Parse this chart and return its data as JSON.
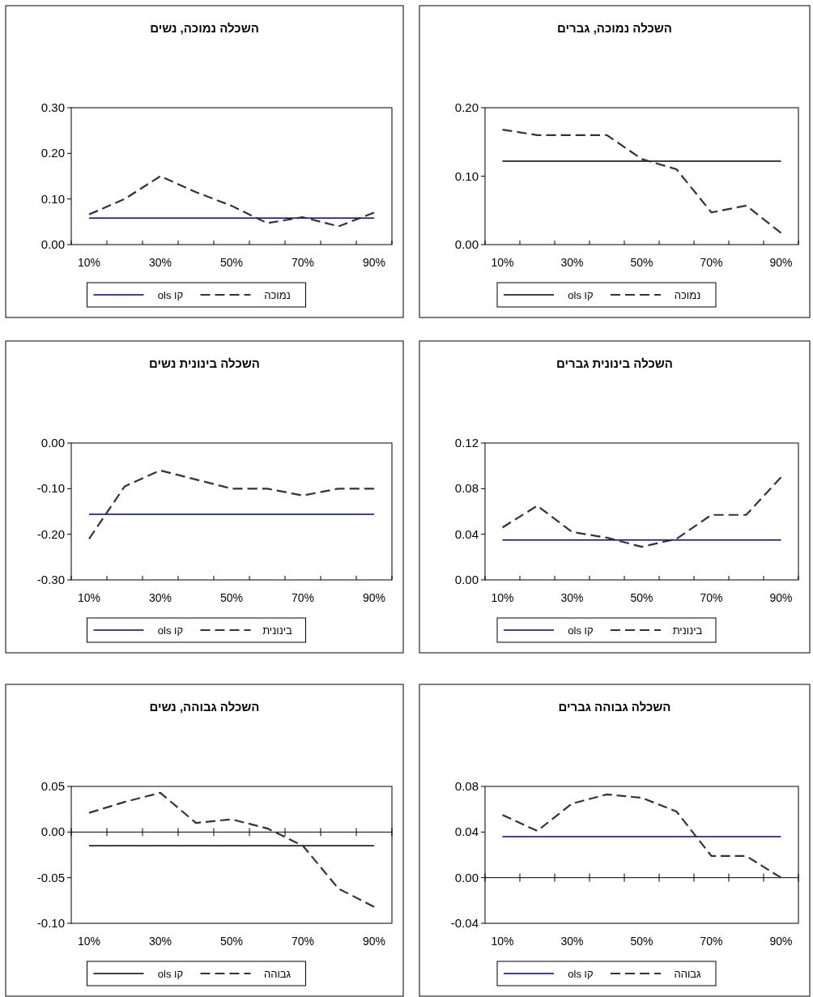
{
  "chart_data": [
    {
      "type": "line",
      "title": "השכלה נמוכה, נשים",
      "categories": [
        "10%",
        null,
        "30%",
        null,
        "50%",
        null,
        "70%",
        null,
        "90%"
      ],
      "ylim": [
        0,
        0.3
      ],
      "yticks": [
        {
          "value": 0,
          "label": "0.00"
        },
        {
          "value": 0.1,
          "label": "0.10"
        },
        {
          "value": 0.2,
          "label": "0.20"
        },
        {
          "value": 0.3,
          "label": "0.30"
        }
      ],
      "legend": "bottom",
      "grid": false,
      "marker": "none",
      "series": [
        {
          "name": "קו ols",
          "color": "#000080",
          "line_style": "solid",
          "values": [
            0.058,
            0.058,
            0.058,
            0.058,
            0.058,
            0.058,
            0.058,
            0.058,
            0.058
          ]
        },
        {
          "name": "נמוכה",
          "color": "#333333",
          "line_style": "dashed",
          "values": [
            0.066,
            0.1,
            0.15,
            0.115,
            0.085,
            0.047,
            0.06,
            0.04,
            0.07
          ]
        }
      ]
    },
    {
      "type": "line",
      "title": "השכלה נמוכה, גברים",
      "categories": [
        "10%",
        null,
        "30%",
        null,
        "50%",
        null,
        "70%",
        null,
        "90%"
      ],
      "ylim": [
        0,
        0.2
      ],
      "yticks": [
        {
          "value": 0,
          "label": "0.00"
        },
        {
          "value": 0.1,
          "label": "0.10"
        },
        {
          "value": 0.2,
          "label": "0.20"
        }
      ],
      "legend": "bottom",
      "grid": false,
      "marker": "none",
      "series": [
        {
          "name": "קו ols",
          "color": "#000000",
          "line_style": "solid",
          "values": [
            0.122,
            0.122,
            0.122,
            0.122,
            0.122,
            0.122,
            0.122,
            0.122,
            0.122
          ]
        },
        {
          "name": "נמוכה",
          "color": "#333333",
          "line_style": "dashed",
          "values": [
            0.168,
            0.16,
            0.16,
            0.16,
            0.125,
            0.11,
            0.047,
            0.057,
            0.017
          ]
        }
      ]
    },
    {
      "type": "line",
      "title": "השכלה בינונית נשים",
      "categories": [
        "10%",
        null,
        "30%",
        null,
        "50%",
        null,
        "70%",
        null,
        "90%"
      ],
      "ylim": [
        -0.3,
        0
      ],
      "yticks": [
        {
          "value": -0.3,
          "label": "-0.30"
        },
        {
          "value": -0.2,
          "label": "-0.20"
        },
        {
          "value": -0.1,
          "label": "-0.10"
        },
        {
          "value": 0,
          "label": "0.00"
        }
      ],
      "legend": "bottom",
      "grid": false,
      "marker": "none",
      "series": [
        {
          "name": "קו ols",
          "color": "#000080",
          "line_style": "solid",
          "values": [
            -0.156,
            -0.156,
            -0.156,
            -0.156,
            -0.156,
            -0.156,
            -0.156,
            -0.156,
            -0.156
          ]
        },
        {
          "name": "בינונית",
          "color": "#333333",
          "line_style": "dashed",
          "values": [
            -0.21,
            -0.095,
            -0.06,
            -0.08,
            -0.1,
            -0.1,
            -0.115,
            -0.1,
            -0.1
          ]
        }
      ]
    },
    {
      "type": "line",
      "title": "השכלה בינונית גברים",
      "categories": [
        "10%",
        null,
        "30%",
        null,
        "50%",
        null,
        "70%",
        null,
        "90%"
      ],
      "ylim": [
        0,
        0.12
      ],
      "yticks": [
        {
          "value": 0,
          "label": "0.00"
        },
        {
          "value": 0.04,
          "label": "0.04"
        },
        {
          "value": 0.08,
          "label": "0.08"
        },
        {
          "value": 0.12,
          "label": "0.12"
        }
      ],
      "legend": "bottom",
      "grid": false,
      "marker": "none",
      "series": [
        {
          "name": "קו ols",
          "color": "#000080",
          "line_style": "solid",
          "values": [
            0.035,
            0.035,
            0.035,
            0.035,
            0.035,
            0.035,
            0.035,
            0.035,
            0.035
          ]
        },
        {
          "name": "בינונית",
          "color": "#333333",
          "line_style": "dashed",
          "values": [
            0.046,
            0.065,
            0.042,
            0.037,
            0.029,
            0.036,
            0.057,
            0.057,
            0.09
          ]
        }
      ]
    },
    {
      "type": "line",
      "title": "השכלה גבוהה, נשים",
      "categories": [
        "10%",
        null,
        "30%",
        null,
        "50%",
        null,
        "70%",
        null,
        "90%"
      ],
      "ylim": [
        -0.1,
        0.05
      ],
      "yticks": [
        {
          "value": -0.1,
          "label": "-0.10"
        },
        {
          "value": -0.05,
          "label": "-0.05"
        },
        {
          "value": 0,
          "label": "0.00"
        },
        {
          "value": 0.05,
          "label": "0.05"
        }
      ],
      "ref_lines": [
        {
          "axis": "y",
          "value": 0,
          "color": "#000000"
        }
      ],
      "legend": "bottom",
      "grid": false,
      "marker": "none",
      "series": [
        {
          "name": "קו ols",
          "color": "#000000",
          "line_style": "solid",
          "values": [
            -0.015,
            -0.015,
            -0.015,
            -0.015,
            -0.015,
            -0.015,
            -0.015,
            -0.015,
            -0.015
          ]
        },
        {
          "name": "גבוהה",
          "color": "#333333",
          "line_style": "dashed",
          "values": [
            0.021,
            0.033,
            0.043,
            0.01,
            0.014,
            0.004,
            -0.015,
            -0.062,
            -0.082
          ]
        }
      ]
    },
    {
      "type": "line",
      "title": "השכלה גבוהה גברים",
      "categories": [
        "10%",
        null,
        "30%",
        null,
        "50%",
        null,
        "70%",
        null,
        "90%"
      ],
      "ylim": [
        -0.04,
        0.08
      ],
      "yticks": [
        {
          "value": -0.04,
          "label": "-0.04"
        },
        {
          "value": 0,
          "label": "0.00"
        },
        {
          "value": 0.04,
          "label": "0.04"
        },
        {
          "value": 0.08,
          "label": "0.08"
        }
      ],
      "ref_lines": [
        {
          "axis": "y",
          "value": 0,
          "color": "#000000"
        }
      ],
      "legend": "bottom",
      "grid": false,
      "marker": "none",
      "series": [
        {
          "name": "קו ols",
          "color": "#000080",
          "line_style": "solid",
          "values": [
            0.036,
            0.036,
            0.036,
            0.036,
            0.036,
            0.036,
            0.036,
            0.036,
            0.036
          ]
        },
        {
          "name": "גבוהה",
          "color": "#333333",
          "line_style": "dashed",
          "values": [
            0.055,
            0.041,
            0.065,
            0.073,
            0.07,
            0.058,
            0.019,
            0.019,
            0.0
          ]
        }
      ]
    }
  ]
}
